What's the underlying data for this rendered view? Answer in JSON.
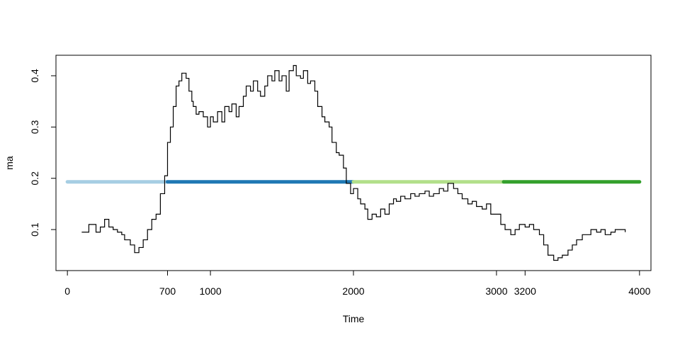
{
  "chart_data": {
    "type": "line",
    "title": "",
    "xlabel": "Time",
    "ylabel": "ma",
    "xlim": [
      -80,
      4080
    ],
    "ylim": [
      0.02,
      0.44
    ],
    "grid": false,
    "x_ticks": [
      {
        "value": 0,
        "label": "0"
      },
      {
        "value": 700,
        "label": "700"
      },
      {
        "value": 1000,
        "label": "1000"
      },
      {
        "value": 2000,
        "label": "2000"
      },
      {
        "value": 3000,
        "label": "3000"
      },
      {
        "value": 3200,
        "label": "3200"
      },
      {
        "value": 4000,
        "label": "4000"
      }
    ],
    "y_ticks": [
      {
        "value": 0.1,
        "label": "0.1"
      },
      {
        "value": 0.2,
        "label": "0.2"
      },
      {
        "value": 0.3,
        "label": "0.3"
      },
      {
        "value": 0.4,
        "label": "0.4"
      }
    ],
    "series": [
      {
        "color": "#000000",
        "style": "step",
        "x": [
          100,
          150,
          200,
          230,
          260,
          290,
          320,
          350,
          380,
          400,
          440,
          470,
          500,
          530,
          560,
          590,
          620,
          650,
          680,
          700,
          720,
          740,
          760,
          780,
          800,
          830,
          850,
          870,
          880,
          900,
          920,
          950,
          980,
          1000,
          1020,
          1050,
          1080,
          1100,
          1130,
          1150,
          1180,
          1200,
          1230,
          1250,
          1280,
          1300,
          1330,
          1350,
          1380,
          1400,
          1430,
          1450,
          1480,
          1500,
          1530,
          1550,
          1580,
          1600,
          1630,
          1650,
          1680,
          1700,
          1730,
          1750,
          1780,
          1800,
          1830,
          1850,
          1880,
          1900,
          1930,
          1950,
          1980,
          2000,
          2030,
          2050,
          2080,
          2100,
          2130,
          2160,
          2190,
          2220,
          2250,
          2280,
          2300,
          2330,
          2360,
          2400,
          2430,
          2460,
          2500,
          2530,
          2560,
          2600,
          2630,
          2660,
          2700,
          2730,
          2760,
          2800,
          2830,
          2860,
          2900,
          2930,
          2960,
          3000,
          3030,
          3060,
          3100,
          3130,
          3160,
          3200,
          3230,
          3260,
          3300,
          3330,
          3360,
          3400,
          3430,
          3460,
          3500,
          3530,
          3560,
          3600,
          3630,
          3660,
          3700,
          3730,
          3760,
          3800,
          3830,
          3860,
          3900
        ],
        "values": [
          0.095,
          0.11,
          0.095,
          0.105,
          0.12,
          0.105,
          0.1,
          0.095,
          0.09,
          0.08,
          0.07,
          0.055,
          0.065,
          0.08,
          0.1,
          0.12,
          0.13,
          0.17,
          0.205,
          0.27,
          0.3,
          0.34,
          0.38,
          0.39,
          0.405,
          0.395,
          0.37,
          0.35,
          0.34,
          0.325,
          0.33,
          0.32,
          0.3,
          0.32,
          0.31,
          0.33,
          0.31,
          0.34,
          0.33,
          0.345,
          0.32,
          0.34,
          0.36,
          0.38,
          0.37,
          0.39,
          0.37,
          0.36,
          0.38,
          0.4,
          0.39,
          0.41,
          0.39,
          0.4,
          0.37,
          0.41,
          0.42,
          0.4,
          0.395,
          0.41,
          0.385,
          0.39,
          0.37,
          0.34,
          0.32,
          0.31,
          0.3,
          0.27,
          0.25,
          0.245,
          0.22,
          0.19,
          0.17,
          0.18,
          0.16,
          0.15,
          0.14,
          0.12,
          0.13,
          0.125,
          0.14,
          0.13,
          0.15,
          0.16,
          0.155,
          0.165,
          0.16,
          0.17,
          0.165,
          0.17,
          0.175,
          0.165,
          0.17,
          0.18,
          0.175,
          0.19,
          0.18,
          0.17,
          0.16,
          0.15,
          0.155,
          0.145,
          0.14,
          0.15,
          0.13,
          0.13,
          0.11,
          0.1,
          0.09,
          0.1,
          0.11,
          0.105,
          0.11,
          0.1,
          0.09,
          0.07,
          0.05,
          0.04,
          0.045,
          0.05,
          0.06,
          0.07,
          0.08,
          0.09,
          0.09,
          0.1,
          0.095,
          0.1,
          0.09,
          0.095,
          0.1,
          0.1,
          0.095
        ]
      }
    ],
    "segments": [
      {
        "x0": 0,
        "x1": 700,
        "y": 0.193,
        "color": "#a6cee3"
      },
      {
        "x0": 700,
        "x1": 2000,
        "y": 0.193,
        "color": "#1f78b4"
      },
      {
        "x0": 2000,
        "x1": 3050,
        "y": 0.193,
        "color": "#b2df8a"
      },
      {
        "x0": 3050,
        "x1": 4000,
        "y": 0.193,
        "color": "#33a02c"
      }
    ]
  }
}
